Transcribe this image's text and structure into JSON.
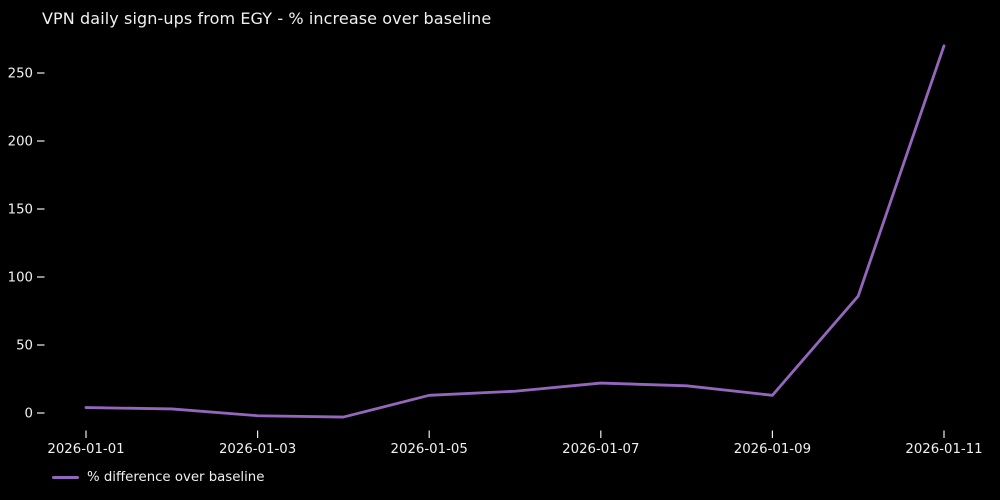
{
  "title": "VPN daily sign-ups from EGY - % increase over baseline",
  "legend": {
    "label": "% difference over baseline"
  },
  "colors": {
    "background": "#000000",
    "line": "#9467bd",
    "text": "#f0f0f0"
  },
  "chart_data": {
    "type": "line",
    "title": "VPN daily sign-ups from EGY - % increase over baseline",
    "x": [
      "2026-01-01",
      "2026-01-02",
      "2026-01-03",
      "2026-01-04",
      "2026-01-05",
      "2026-01-06",
      "2026-01-07",
      "2026-01-08",
      "2026-01-09",
      "2026-01-10",
      "2026-01-11"
    ],
    "series": [
      {
        "name": "% difference over baseline",
        "values": [
          4,
          3,
          -2,
          -3,
          13,
          16,
          22,
          20,
          13,
          86,
          270
        ]
      }
    ],
    "xticks": [
      "2026-01-01",
      "2026-01-03",
      "2026-01-05",
      "2026-01-07",
      "2026-01-09",
      "2026-01-11"
    ],
    "yticks": [
      0,
      50,
      100,
      150,
      200,
      250
    ],
    "ylim": [
      -20,
      283
    ],
    "xlabel": "",
    "ylabel": "",
    "grid": false,
    "legend_position": "lower left",
    "line_color": "#9467bd",
    "background_color": "#000000"
  }
}
